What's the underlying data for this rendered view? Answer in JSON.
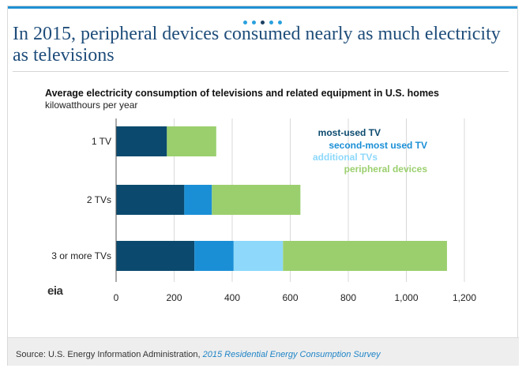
{
  "headline": "In 2015, peripheral devices consumed nearly as much electricity as televisions",
  "pagination": {
    "count": 5,
    "active_index": 2
  },
  "colors": {
    "accent": "#1e90d4",
    "headline": "#1f4d7a",
    "most_used": "#0b4a6e",
    "second_most": "#1a8fd6",
    "additional": "#8dd8fb",
    "peripheral": "#9bcf6e"
  },
  "logo": {
    "name": "eia-logo",
    "text": "eia"
  },
  "source": {
    "prefix": "Source: U.S. Energy Information Administration, ",
    "link_text": "2015 Residential Energy Consumption Survey"
  },
  "chart_data": {
    "type": "bar",
    "orientation": "horizontal",
    "stacked": true,
    "title": "Average electricity consumption of televisions and related equipment in U.S. homes",
    "subtitle": "kilowatthours per year",
    "categories": [
      "1 TV",
      "2 TVs",
      "3 or more TVs"
    ],
    "series": [
      {
        "name": "most-used TV",
        "color": "#0b4a6e",
        "values": [
          175,
          235,
          270
        ]
      },
      {
        "name": "second-most used TV",
        "color": "#1a8fd6",
        "values": [
          0,
          95,
          135
        ]
      },
      {
        "name": "additional TVs",
        "color": "#8dd8fb",
        "values": [
          0,
          0,
          170
        ]
      },
      {
        "name": "peripheral devices",
        "color": "#9bcf6e",
        "values": [
          170,
          305,
          565
        ]
      }
    ],
    "xlim": [
      0,
      1200
    ],
    "xticks": [
      0,
      200,
      400,
      600,
      800,
      1000,
      1200
    ],
    "xtick_labels": [
      "0",
      "200",
      "400",
      "600",
      "800",
      "1,000",
      "1,200"
    ],
    "grid": "vertical",
    "legend_placement": "top-right"
  }
}
